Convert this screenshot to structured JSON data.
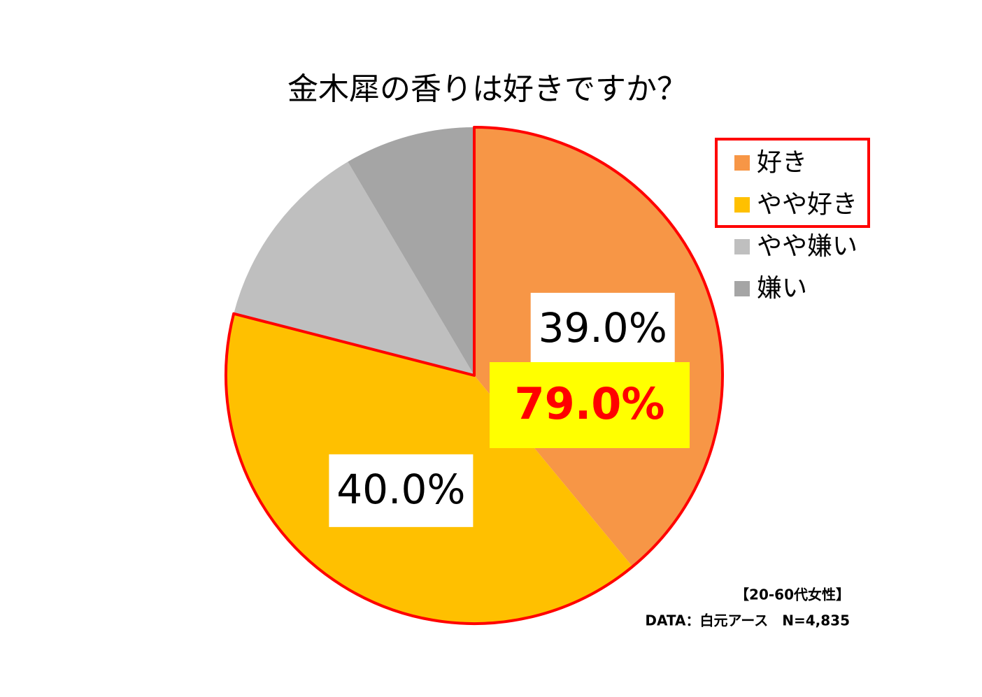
{
  "chart_data": {
    "type": "pie",
    "title": "金木犀の香りは好きですか？",
    "categories": [
      "好き",
      "やや好き",
      "やや嫌い",
      "嫌い"
    ],
    "values": [
      39.0,
      40.0,
      12.5,
      8.5
    ],
    "value_labels": [
      "39.0%",
      "40.0%",
      null,
      null
    ],
    "colors": [
      "#F79646",
      "#FFC000",
      "#BFBFBF",
      "#A5A5A5"
    ],
    "annotation": "79.0%",
    "footnotes": [
      "【20-60代女性】",
      "DATA：白元アース　N=4,835"
    ],
    "legend": "right"
  }
}
